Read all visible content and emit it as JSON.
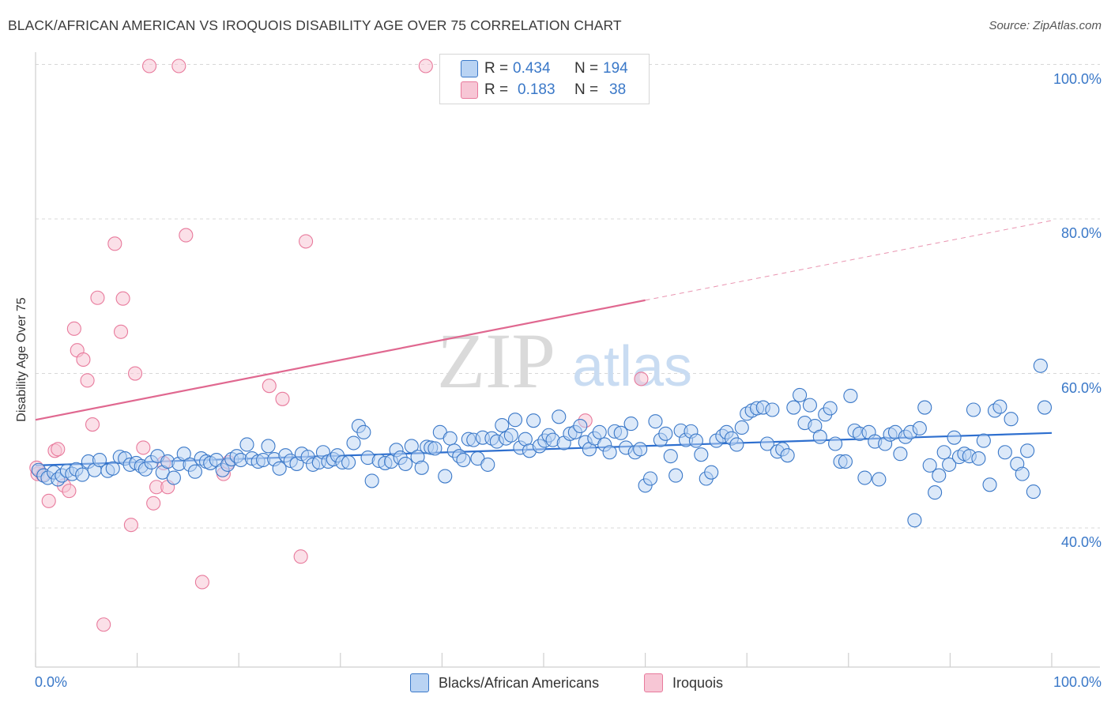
{
  "header": {
    "title": "BLACK/AFRICAN AMERICAN VS IROQUOIS DISABILITY AGE OVER 75 CORRELATION CHART",
    "source": "Source: ZipAtlas.com"
  },
  "watermark": {
    "zip": "ZIP",
    "atlas": "atlas"
  },
  "stats": {
    "r_label": "R =",
    "n_label": "N =",
    "blue": {
      "r": "0.434",
      "n": "194"
    },
    "pink": {
      "r": "0.183",
      "n": "38"
    }
  },
  "legend": {
    "blue_label": "Blacks/African Americans",
    "pink_label": "Iroquois"
  },
  "axes": {
    "y_title": "Disability Age Over 75",
    "x_min_label": "0.0%",
    "x_max_label": "100.0%",
    "y_ticks": [
      {
        "value": 40,
        "label": "40.0%"
      },
      {
        "value": 60,
        "label": "60.0%"
      },
      {
        "value": 80,
        "label": "80.0%"
      },
      {
        "value": 100,
        "label": "100.0%"
      }
    ]
  },
  "colors": {
    "blue": "#3a78c8",
    "blue_fill": "#b9d3f3",
    "blue_line": "#2e6fcf",
    "pink": "#e87a9c",
    "pink_fill": "#f7c6d5",
    "pink_line": "#e06890",
    "grid": "#d8d8d8"
  },
  "chart_data": {
    "type": "scatter",
    "title": "BLACK/AFRICAN AMERICAN VS IROQUOIS DISABILITY AGE OVER 75 CORRELATION CHART",
    "xlabel": "",
    "ylabel": "Disability Age Over 75",
    "xlim": [
      0,
      100
    ],
    "ylim": [
      22,
      102
    ],
    "series": [
      {
        "name": "Blacks/African Americans",
        "R": 0.434,
        "N": 194,
        "trend": {
          "x0": 0,
          "y0": 48.1,
          "x1": 100,
          "y1": 52.3
        },
        "points": [
          [
            0.3,
            47.5
          ],
          [
            0.8,
            46.8
          ],
          [
            1.2,
            46.5
          ],
          [
            1.8,
            47.2
          ],
          [
            2.2,
            46.3
          ],
          [
            2.6,
            46.8
          ],
          [
            3.1,
            47.4
          ],
          [
            3.6,
            47.0
          ],
          [
            4.0,
            47.6
          ],
          [
            4.6,
            46.9
          ],
          [
            5.2,
            48.6
          ],
          [
            5.8,
            47.5
          ],
          [
            6.3,
            48.8
          ],
          [
            7.1,
            47.4
          ],
          [
            7.6,
            47.7
          ],
          [
            8.3,
            49.2
          ],
          [
            8.8,
            49.0
          ],
          [
            9.3,
            48.2
          ],
          [
            9.9,
            48.4
          ],
          [
            10.4,
            48.0
          ],
          [
            10.8,
            47.6
          ],
          [
            11.4,
            48.5
          ],
          [
            12.0,
            49.3
          ],
          [
            12.5,
            47.2
          ],
          [
            13.0,
            48.6
          ],
          [
            13.6,
            46.5
          ],
          [
            14.1,
            48.3
          ],
          [
            14.6,
            49.6
          ],
          [
            15.2,
            48.2
          ],
          [
            15.7,
            47.3
          ],
          [
            16.3,
            49.0
          ],
          [
            16.8,
            48.6
          ],
          [
            17.2,
            48.4
          ],
          [
            17.8,
            48.8
          ],
          [
            18.4,
            47.5
          ],
          [
            18.9,
            48.2
          ],
          [
            19.3,
            48.9
          ],
          [
            19.8,
            49.3
          ],
          [
            20.2,
            48.8
          ],
          [
            20.8,
            50.8
          ],
          [
            21.3,
            49.0
          ],
          [
            21.9,
            48.6
          ],
          [
            22.4,
            48.8
          ],
          [
            22.9,
            50.6
          ],
          [
            23.5,
            48.9
          ],
          [
            24.0,
            47.7
          ],
          [
            24.6,
            49.4
          ],
          [
            25.1,
            48.7
          ],
          [
            25.7,
            48.3
          ],
          [
            26.2,
            49.6
          ],
          [
            26.8,
            49.2
          ],
          [
            27.3,
            48.2
          ],
          [
            27.9,
            48.5
          ],
          [
            28.3,
            49.8
          ],
          [
            28.8,
            48.6
          ],
          [
            29.3,
            48.9
          ],
          [
            29.7,
            49.4
          ],
          [
            30.2,
            48.5
          ],
          [
            30.8,
            48.5
          ],
          [
            31.3,
            51.0
          ],
          [
            31.8,
            53.2
          ],
          [
            32.3,
            52.4
          ],
          [
            32.7,
            49.1
          ],
          [
            33.1,
            46.1
          ],
          [
            33.8,
            48.7
          ],
          [
            34.4,
            48.4
          ],
          [
            35.0,
            48.6
          ],
          [
            35.5,
            50.1
          ],
          [
            35.9,
            49.1
          ],
          [
            36.4,
            48.3
          ],
          [
            37.0,
            50.6
          ],
          [
            37.6,
            49.2
          ],
          [
            38.0,
            47.8
          ],
          [
            38.5,
            50.5
          ],
          [
            38.9,
            50.4
          ],
          [
            39.3,
            50.3
          ],
          [
            39.8,
            52.4
          ],
          [
            40.3,
            46.7
          ],
          [
            40.8,
            51.6
          ],
          [
            41.2,
            50.0
          ],
          [
            41.7,
            49.3
          ],
          [
            42.1,
            48.8
          ],
          [
            42.6,
            51.5
          ],
          [
            43.1,
            51.4
          ],
          [
            43.5,
            49.0
          ],
          [
            44.0,
            51.7
          ],
          [
            44.5,
            48.2
          ],
          [
            44.9,
            51.6
          ],
          [
            45.4,
            51.2
          ],
          [
            45.9,
            53.3
          ],
          [
            46.3,
            51.6
          ],
          [
            46.8,
            52.0
          ],
          [
            47.2,
            54.0
          ],
          [
            47.7,
            50.4
          ],
          [
            48.2,
            51.5
          ],
          [
            48.6,
            50.0
          ],
          [
            49.0,
            53.9
          ],
          [
            49.6,
            50.6
          ],
          [
            50.1,
            51.3
          ],
          [
            50.5,
            52.0
          ],
          [
            50.9,
            51.4
          ],
          [
            51.5,
            54.4
          ],
          [
            52.0,
            51.0
          ],
          [
            52.6,
            52.2
          ],
          [
            53.1,
            52.4
          ],
          [
            53.6,
            53.2
          ],
          [
            54.1,
            51.1
          ],
          [
            54.5,
            50.2
          ],
          [
            55.0,
            51.6
          ],
          [
            55.5,
            52.4
          ],
          [
            56.0,
            50.8
          ],
          [
            56.5,
            49.8
          ],
          [
            57.0,
            52.5
          ],
          [
            57.6,
            52.3
          ],
          [
            58.1,
            50.4
          ],
          [
            58.6,
            53.5
          ],
          [
            59.0,
            49.8
          ],
          [
            59.5,
            50.2
          ],
          [
            60.0,
            45.5
          ],
          [
            60.5,
            46.4
          ],
          [
            61.0,
            53.8
          ],
          [
            61.5,
            51.4
          ],
          [
            62.0,
            52.2
          ],
          [
            62.5,
            49.3
          ],
          [
            63.0,
            46.8
          ],
          [
            63.5,
            52.6
          ],
          [
            64.0,
            51.4
          ],
          [
            64.5,
            52.5
          ],
          [
            65.0,
            51.3
          ],
          [
            65.5,
            49.5
          ],
          [
            66.0,
            46.4
          ],
          [
            66.5,
            47.2
          ],
          [
            67.0,
            51.3
          ],
          [
            67.6,
            51.9
          ],
          [
            68.0,
            52.4
          ],
          [
            68.5,
            51.6
          ],
          [
            69.0,
            50.8
          ],
          [
            69.5,
            53.0
          ],
          [
            70.0,
            54.8
          ],
          [
            70.5,
            55.2
          ],
          [
            71.0,
            55.5
          ],
          [
            71.6,
            55.6
          ],
          [
            72.0,
            50.9
          ],
          [
            72.5,
            55.3
          ],
          [
            73.0,
            49.9
          ],
          [
            73.5,
            50.2
          ],
          [
            74.0,
            49.4
          ],
          [
            74.6,
            55.6
          ],
          [
            75.2,
            57.2
          ],
          [
            75.7,
            53.6
          ],
          [
            76.2,
            55.9
          ],
          [
            76.7,
            53.2
          ],
          [
            77.2,
            51.8
          ],
          [
            77.7,
            54.7
          ],
          [
            78.2,
            55.5
          ],
          [
            78.7,
            50.9
          ],
          [
            79.2,
            48.6
          ],
          [
            79.7,
            48.6
          ],
          [
            80.2,
            57.1
          ],
          [
            80.6,
            52.6
          ],
          [
            81.1,
            52.2
          ],
          [
            81.6,
            46.5
          ],
          [
            82.0,
            52.4
          ],
          [
            82.6,
            51.2
          ],
          [
            83.0,
            46.3
          ],
          [
            83.6,
            50.9
          ],
          [
            84.1,
            52.1
          ],
          [
            84.6,
            52.4
          ],
          [
            85.1,
            49.6
          ],
          [
            85.6,
            51.8
          ],
          [
            86.1,
            52.4
          ],
          [
            86.5,
            41.0
          ],
          [
            87.0,
            52.9
          ],
          [
            87.5,
            55.6
          ],
          [
            88.0,
            48.1
          ],
          [
            88.5,
            44.6
          ],
          [
            88.9,
            46.8
          ],
          [
            89.4,
            49.8
          ],
          [
            89.9,
            48.2
          ],
          [
            90.4,
            51.7
          ],
          [
            90.9,
            49.2
          ],
          [
            91.4,
            49.6
          ],
          [
            91.9,
            49.3
          ],
          [
            92.3,
            55.3
          ],
          [
            92.8,
            49.0
          ],
          [
            93.3,
            51.3
          ],
          [
            93.9,
            45.6
          ],
          [
            94.4,
            55.2
          ],
          [
            94.9,
            55.7
          ],
          [
            95.4,
            49.8
          ],
          [
            96.0,
            54.1
          ],
          [
            96.6,
            48.3
          ],
          [
            97.1,
            47.0
          ],
          [
            97.6,
            50.0
          ],
          [
            98.2,
            44.7
          ],
          [
            98.9,
            61.0
          ],
          [
            99.3,
            55.6
          ]
        ]
      },
      {
        "name": "Iroquois",
        "R": 0.183,
        "N": 38,
        "trend": {
          "x0": 0,
          "y0": 54.0,
          "x1": 100,
          "y1": 79.8,
          "solid_until_x": 60
        },
        "points": [
          [
            0.2,
            47.0
          ],
          [
            0.7,
            46.9
          ],
          [
            1.3,
            43.5
          ],
          [
            1.9,
            50.0
          ],
          [
            2.2,
            50.2
          ],
          [
            2.8,
            45.5
          ],
          [
            3.3,
            44.8
          ],
          [
            3.8,
            65.8
          ],
          [
            4.1,
            63.0
          ],
          [
            4.7,
            61.8
          ],
          [
            5.1,
            59.1
          ],
          [
            5.6,
            53.4
          ],
          [
            6.1,
            69.8
          ],
          [
            6.7,
            27.5
          ],
          [
            7.8,
            76.8
          ],
          [
            8.4,
            65.4
          ],
          [
            8.6,
            69.7
          ],
          [
            9.4,
            40.4
          ],
          [
            9.8,
            60.0
          ],
          [
            10.6,
            50.4
          ],
          [
            11.2,
            99.8
          ],
          [
            11.6,
            43.2
          ],
          [
            11.9,
            45.3
          ],
          [
            12.6,
            48.4
          ],
          [
            13.0,
            45.3
          ],
          [
            14.1,
            99.8
          ],
          [
            14.8,
            77.9
          ],
          [
            16.4,
            33.0
          ],
          [
            18.5,
            47.0
          ],
          [
            19.0,
            48.5
          ],
          [
            23.0,
            58.4
          ],
          [
            24.3,
            56.7
          ],
          [
            26.1,
            36.3
          ],
          [
            26.6,
            77.1
          ],
          [
            38.4,
            99.8
          ],
          [
            54.1,
            53.9
          ],
          [
            59.6,
            59.3
          ],
          [
            0.1,
            47.8
          ]
        ]
      }
    ]
  }
}
